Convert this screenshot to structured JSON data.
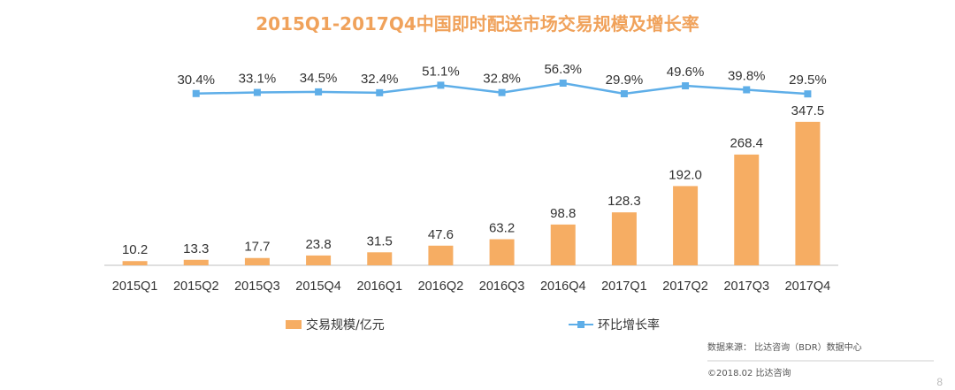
{
  "chart_data": {
    "type": "bar",
    "title": "2015Q1-2017Q4中国即时配送市场交易规模及增长率",
    "categories": [
      "2015Q1",
      "2015Q2",
      "2015Q3",
      "2015Q4",
      "2016Q1",
      "2016Q2",
      "2016Q3",
      "2016Q4",
      "2017Q1",
      "2017Q2",
      "2017Q3",
      "2017Q4"
    ],
    "series": [
      {
        "name": "交易规模/亿元",
        "kind": "bar",
        "values": [
          10.2,
          13.3,
          17.7,
          23.8,
          31.5,
          47.6,
          63.2,
          98.8,
          128.3,
          192.0,
          268.4,
          347.5
        ],
        "labels": [
          "10.2",
          "13.3",
          "17.7",
          "23.8",
          "31.5",
          "47.6",
          "63.2",
          "98.8",
          "128.3",
          "192.0",
          "268.4",
          "347.5"
        ]
      },
      {
        "name": "环比增长率",
        "kind": "line",
        "values": [
          null,
          30.4,
          33.1,
          34.5,
          32.4,
          51.1,
          32.8,
          56.3,
          29.9,
          49.6,
          39.8,
          29.5
        ],
        "labels": [
          "",
          "30.4%",
          "33.1%",
          "34.5%",
          "32.4%",
          "51.1%",
          "32.8%",
          "56.3%",
          "29.9%",
          "49.6%",
          "39.8%",
          "29.5%"
        ]
      }
    ],
    "ylim": [
      0,
      360
    ],
    "line_ylim": [
      0,
      100
    ],
    "legend": "bottom",
    "grid": false,
    "xlabel": "",
    "ylabel": ""
  },
  "colors": {
    "bar": "#f6ad63",
    "line": "#5eaee8",
    "title": "#f0a25b",
    "axis": "#bfbfbf",
    "text": "#333333"
  },
  "source": {
    "line1": "数据来源：  比达咨询（BDR）数据中心",
    "line2": "©2018.02    比达咨询"
  },
  "page_number": "8"
}
